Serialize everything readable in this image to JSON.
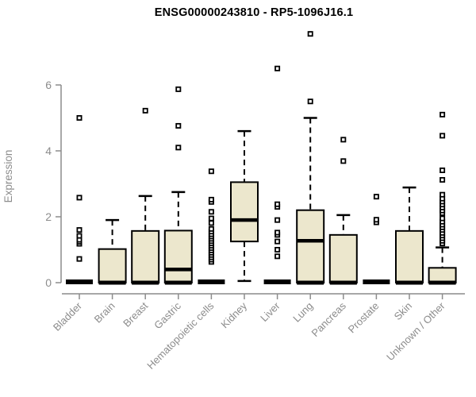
{
  "title": "ENSG00000243810 - RP5-1096J16.1",
  "y_axis": {
    "label": "Expression",
    "ticks": [
      0,
      2,
      4,
      6
    ]
  },
  "colors": {
    "box_fill": "#ECE7CD",
    "box_stroke": "#000000",
    "median": "#000000",
    "axis": "#8C8C8C",
    "tick_text": "#8C8C8C",
    "background": "#FFFFFF"
  },
  "chart_data": {
    "type": "boxplot",
    "title": "ENSG00000243810 - RP5-1096J16.1",
    "xlabel": "",
    "ylabel": "Expression",
    "ylim": [
      0,
      6
    ],
    "grid": false,
    "categories": [
      "Bladder",
      "Brain",
      "Breast",
      "Gastric",
      "Hematopoietic cells",
      "Kidney",
      "Liver",
      "Lung",
      "Pancreas",
      "Prostate",
      "Skin",
      "Unknown / Other"
    ],
    "boxes": [
      {
        "label": "Bladder",
        "q1": 0,
        "median": 0,
        "q3": 0,
        "whisker_low": 0,
        "whisker_high": 0,
        "outliers": [
          0.72,
          1.18,
          1.24,
          1.3,
          1.42,
          1.6,
          2.58,
          5.0
        ]
      },
      {
        "label": "Brain",
        "q1": 0,
        "median": 0,
        "q3": 1.02,
        "whisker_low": 0,
        "whisker_high": 1.9,
        "outliers": []
      },
      {
        "label": "Breast",
        "q1": 0,
        "median": 0,
        "q3": 1.57,
        "whisker_low": 0,
        "whisker_high": 2.63,
        "outliers": [
          5.22
        ]
      },
      {
        "label": "Gastric",
        "q1": 0,
        "median": 0.4,
        "q3": 1.58,
        "whisker_low": 0,
        "whisker_high": 2.75,
        "outliers": [
          4.1,
          4.76,
          5.87
        ]
      },
      {
        "label": "Hematopoietic cells",
        "q1": 0,
        "median": 0,
        "q3": 0,
        "whisker_low": 0,
        "whisker_high": 0,
        "outliers": [
          0.63,
          0.7,
          0.77,
          0.84,
          0.91,
          0.98,
          1.05,
          1.12,
          1.19,
          1.26,
          1.33,
          1.4,
          1.47,
          1.55,
          1.63,
          1.81,
          1.95,
          2.15,
          2.45,
          2.52,
          3.38
        ]
      },
      {
        "label": "Kidney",
        "q1": 1.25,
        "median": 1.9,
        "q3": 3.05,
        "whisker_low": 0.05,
        "whisker_high": 4.6,
        "outliers": []
      },
      {
        "label": "Liver",
        "q1": 0,
        "median": 0,
        "q3": 0,
        "whisker_low": 0,
        "whisker_high": 0,
        "outliers": [
          0.8,
          1.0,
          1.25,
          1.45,
          1.52,
          1.9,
          2.3,
          2.38,
          6.5
        ]
      },
      {
        "label": "Lung",
        "q1": 0,
        "median": 1.27,
        "q3": 2.2,
        "whisker_low": 0,
        "whisker_high": 5.0,
        "outliers": [
          5.5,
          7.55
        ]
      },
      {
        "label": "Pancreas",
        "q1": 0,
        "median": 0,
        "q3": 1.45,
        "whisker_low": 0,
        "whisker_high": 2.05,
        "outliers": [
          3.69,
          4.34
        ]
      },
      {
        "label": "Prostate",
        "q1": 0,
        "median": 0,
        "q3": 0,
        "whisker_low": 0,
        "whisker_high": 0,
        "outliers": [
          1.83,
          1.91,
          2.61
        ]
      },
      {
        "label": "Skin",
        "q1": 0,
        "median": 0,
        "q3": 1.57,
        "whisker_low": 0,
        "whisker_high": 2.89,
        "outliers": []
      },
      {
        "label": "Unknown / Other",
        "q1": 0,
        "median": 0,
        "q3": 0.45,
        "whisker_low": 0,
        "whisker_high": 1.07,
        "outliers": [
          1.19,
          1.27,
          1.35,
          1.43,
          1.51,
          1.6,
          1.68,
          1.76,
          1.85,
          1.95,
          2.11,
          2.19,
          2.28,
          2.37,
          2.46,
          2.55,
          2.67,
          3.12,
          3.41,
          4.46,
          5.1
        ]
      }
    ]
  }
}
